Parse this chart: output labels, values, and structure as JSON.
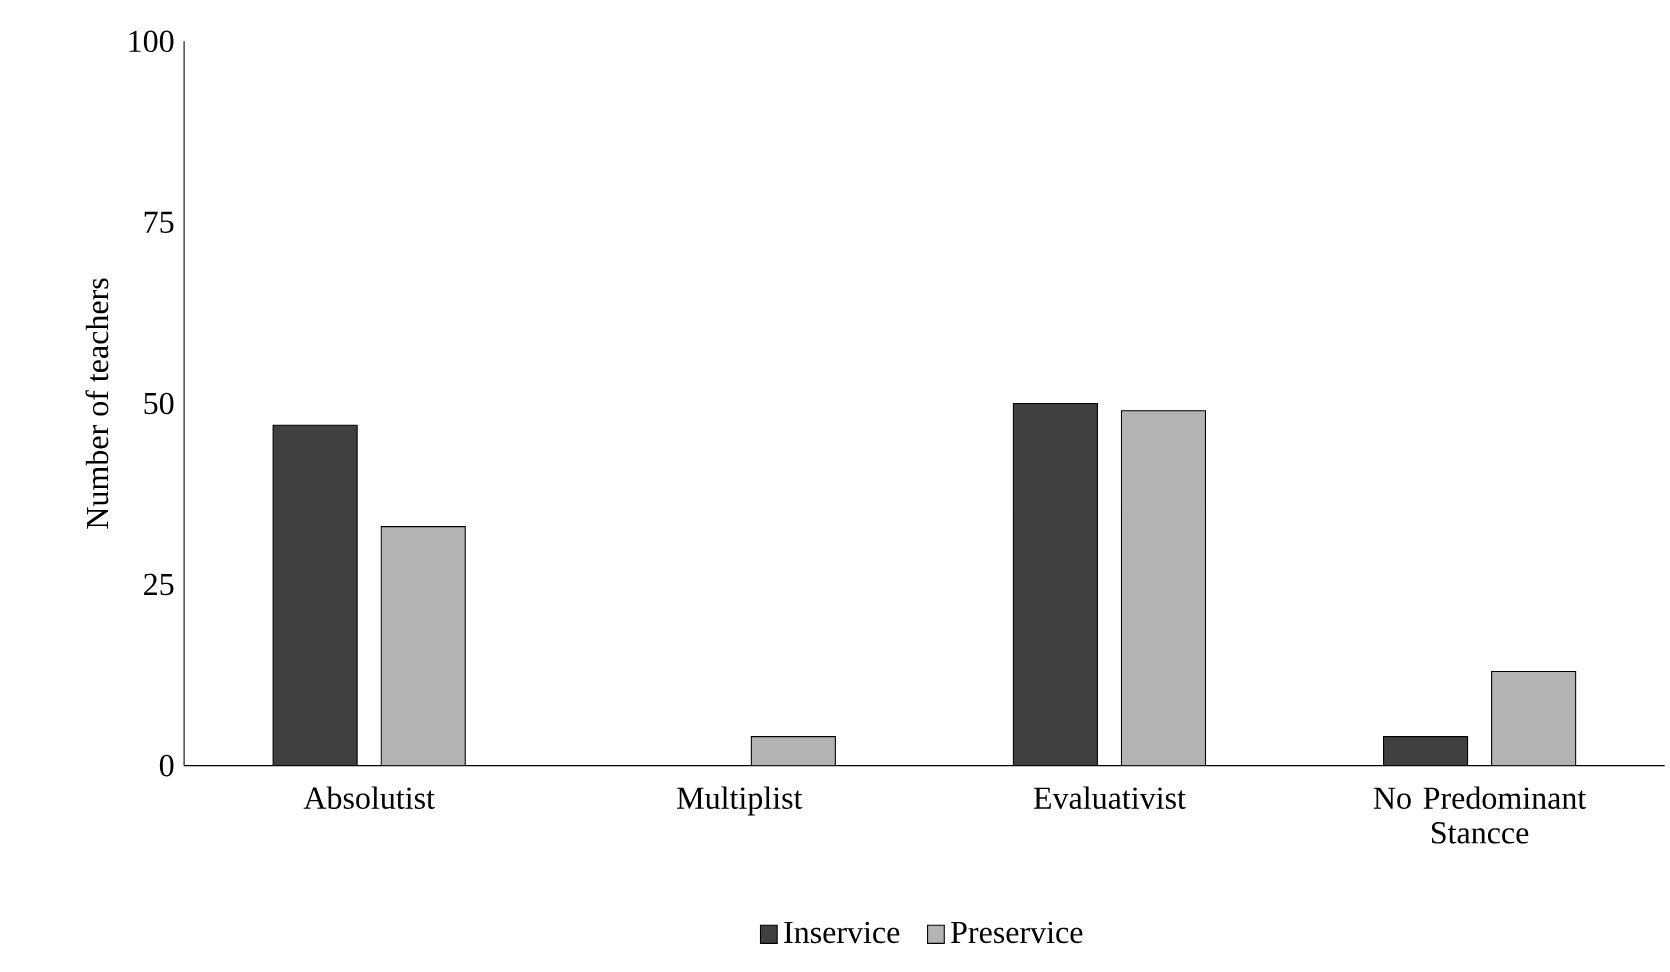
{
  "chart_data": {
    "type": "bar",
    "ylabel": "Number of teachers",
    "categories": [
      "Absolutist",
      "Multiplist",
      "Evaluativist",
      "No Predominant Stancce"
    ],
    "series": [
      {
        "name": "Inservice",
        "color": "#404040",
        "values": [
          47,
          null,
          50,
          4
        ]
      },
      {
        "name": "Preservice",
        "color": "#b3b3b3",
        "values": [
          33,
          4,
          49,
          13
        ]
      }
    ],
    "ylim": [
      0,
      100
    ],
    "yticks": [
      0,
      25,
      50,
      75,
      100
    ],
    "grid": false,
    "legend": "bottom"
  }
}
